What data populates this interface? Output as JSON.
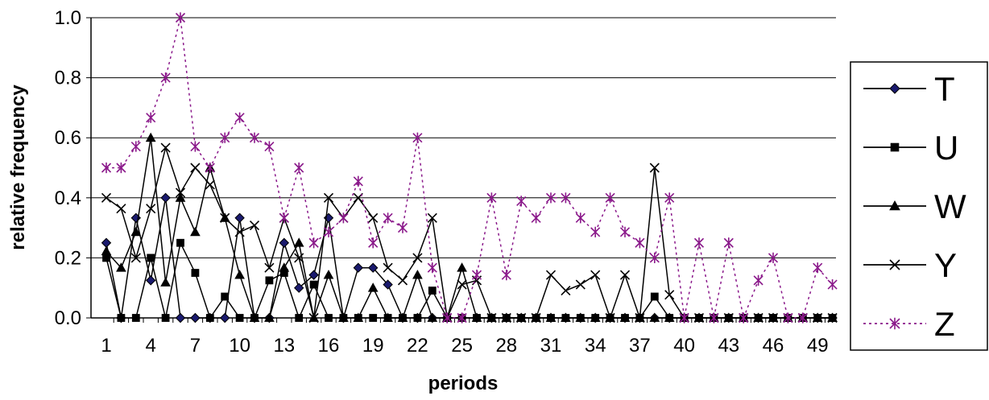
{
  "chart_data": {
    "type": "line",
    "xlabel": "periods",
    "ylabel": "relative frequency",
    "ylim": [
      0,
      1.0
    ],
    "xlim": [
      1,
      50
    ],
    "y_ticks": [
      "0.0",
      "0.2",
      "0.4",
      "0.6",
      "0.8",
      "1.0"
    ],
    "x_ticks": [
      "1",
      "4",
      "7",
      "10",
      "13",
      "16",
      "19",
      "22",
      "25",
      "28",
      "31",
      "34",
      "37",
      "40",
      "43",
      "46",
      "49"
    ],
    "grid": "horizontal",
    "legend_position": "right",
    "x": [
      1,
      2,
      3,
      4,
      5,
      6,
      7,
      8,
      9,
      10,
      11,
      12,
      13,
      14,
      15,
      16,
      17,
      18,
      19,
      20,
      21,
      22,
      23,
      24,
      25,
      26,
      27,
      28,
      29,
      30,
      31,
      32,
      33,
      34,
      35,
      36,
      37,
      38,
      39,
      40,
      41,
      42,
      43,
      44,
      45,
      46,
      47,
      48,
      49,
      50
    ],
    "series": [
      {
        "name": "T",
        "color": "#000000",
        "marker_fill": "#1a1a6e",
        "marker": "diamond",
        "dash": "",
        "values": [
          0.25,
          0,
          0.333,
          0.125,
          0.4,
          0,
          0,
          0,
          0,
          0.333,
          0,
          0,
          0.25,
          0.1,
          0.143,
          0.333,
          0,
          0.167,
          0.167,
          0.111,
          0,
          0,
          0,
          0,
          0,
          0,
          0,
          0,
          0,
          0,
          0,
          0,
          0,
          0,
          0,
          0,
          0,
          0,
          0,
          0,
          0,
          0,
          0,
          0,
          0,
          0,
          0,
          0,
          0,
          0
        ]
      },
      {
        "name": "U",
        "color": "#000000",
        "marker_fill": "#000000",
        "marker": "square",
        "dash": "",
        "values": [
          0.2,
          0,
          0,
          0.2,
          0,
          0.25,
          0.15,
          0,
          0.071,
          0,
          0,
          0.125,
          0.15,
          0,
          0.111,
          0,
          0,
          0,
          0,
          0,
          0,
          0,
          0.091,
          0,
          0,
          0,
          0,
          0,
          0,
          0,
          0,
          0,
          0,
          0,
          0,
          0,
          0,
          0.071,
          0,
          0,
          0,
          0,
          0,
          0,
          0,
          0,
          0,
          0,
          0,
          0
        ]
      },
      {
        "name": "W",
        "color": "#000000",
        "marker_fill": "#000000",
        "marker": "triangle",
        "dash": "",
        "values": [
          0.222,
          0.167,
          0.286,
          0.6,
          0.118,
          0.4,
          0.286,
          0.5,
          0.333,
          0.143,
          0,
          0,
          0.167,
          0.25,
          0,
          0.143,
          0,
          0,
          0.1,
          0,
          0,
          0.143,
          0,
          0,
          0.167,
          0,
          0,
          0,
          0,
          0,
          0,
          0,
          0,
          0,
          0,
          0,
          0,
          0,
          0,
          0,
          0,
          0,
          0,
          0,
          0,
          0,
          0,
          0,
          0,
          0
        ]
      },
      {
        "name": "Y",
        "color": "#000000",
        "marker_fill": "#000000",
        "marker": "x",
        "dash": "",
        "values": [
          0.4,
          0.364,
          0.2,
          0.364,
          0.567,
          0.417,
          0.5,
          0.444,
          0.333,
          0.286,
          0.308,
          0.167,
          0.333,
          0.2,
          0,
          0.4,
          0.333,
          0.4,
          0.333,
          0.167,
          0.125,
          0.2,
          0.333,
          0,
          0.111,
          0.125,
          0,
          0,
          0,
          0,
          0.143,
          0.091,
          0.111,
          0.143,
          0,
          0.143,
          0,
          0.5,
          0.077,
          0,
          0,
          0,
          0,
          0,
          0,
          0,
          0,
          0,
          0,
          0
        ]
      },
      {
        "name": "Z",
        "color": "#8b1a8b",
        "marker_fill": "#8b1a8b",
        "marker": "star",
        "dash": "3,4",
        "values": [
          0.5,
          0.5,
          0.571,
          0.667,
          0.8,
          1.0,
          0.571,
          0.5,
          0.6,
          0.667,
          0.6,
          0.571,
          0.333,
          0.5,
          0.25,
          0.286,
          0.333,
          0.455,
          0.25,
          0.333,
          0.3,
          0.6,
          0.167,
          0,
          0,
          0.143,
          0.4,
          0.143,
          0.389,
          0.333,
          0.4,
          0.4,
          0.333,
          0.286,
          0.4,
          0.286,
          0.25,
          0.2,
          0.4,
          0,
          0.25,
          0,
          0.25,
          0,
          0.125,
          0.2,
          0,
          0,
          0.167,
          0.111
        ]
      }
    ]
  }
}
